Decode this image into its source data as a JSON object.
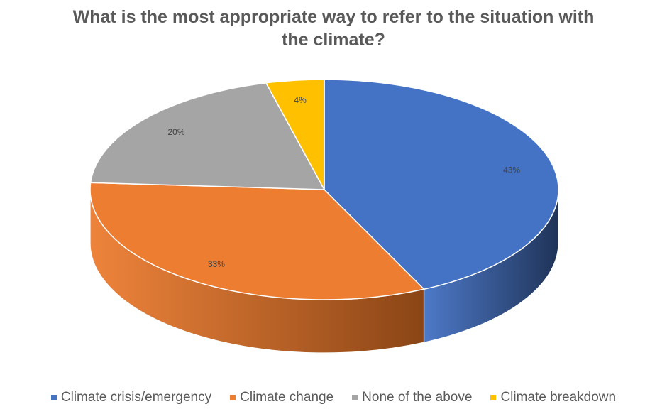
{
  "chart_data": {
    "type": "pie",
    "title": "What is the most appropriate way to refer to the situation with the climate?",
    "categories": [
      "Climate crisis/emergency",
      "Climate change",
      "None of the above",
      "Climate breakdown"
    ],
    "values": [
      43,
      33,
      20,
      4
    ],
    "data_labels": [
      "43%",
      "33%",
      "20%",
      "4%"
    ],
    "colors": [
      "#4472C4",
      "#ED7D31",
      "#A5A5A5",
      "#FFC000"
    ],
    "side_colors": [
      "#1F3358",
      "#8A4516",
      "#6E6E6E",
      "#A07800"
    ],
    "style": "3d",
    "legend_position": "bottom"
  }
}
